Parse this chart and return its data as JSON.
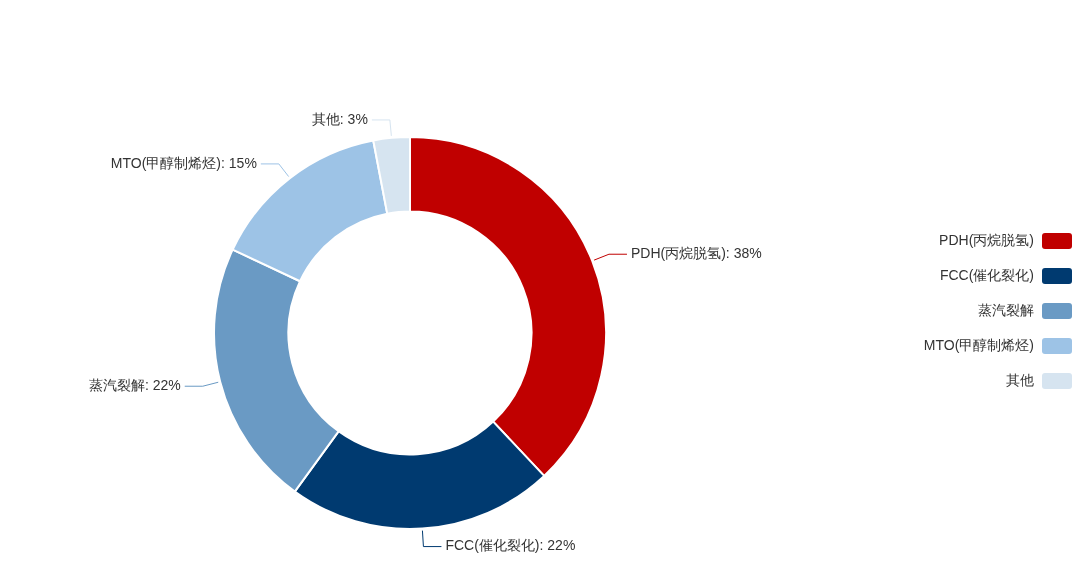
{
  "chart_data": {
    "type": "donut",
    "categories": [
      "PDH(丙烷脱氢)",
      "FCC(催化裂化)",
      "蒸汽裂解",
      "MTO(甲醇制烯烃)",
      "其他"
    ],
    "values": [
      38,
      22,
      22,
      15,
      3
    ],
    "colors": [
      "#c00000",
      "#003a70",
      "#6a9ac4",
      "#9dc3e6",
      "#d6e4f0"
    ],
    "value_labels": [
      "PDH(丙烷脱氢): 38%",
      "FCC(催化裂化): 22%",
      "蒸汽裂解: 22%",
      "MTO(甲醇制烯烃): 15%",
      "其他: 3%"
    ],
    "legend": "right"
  }
}
